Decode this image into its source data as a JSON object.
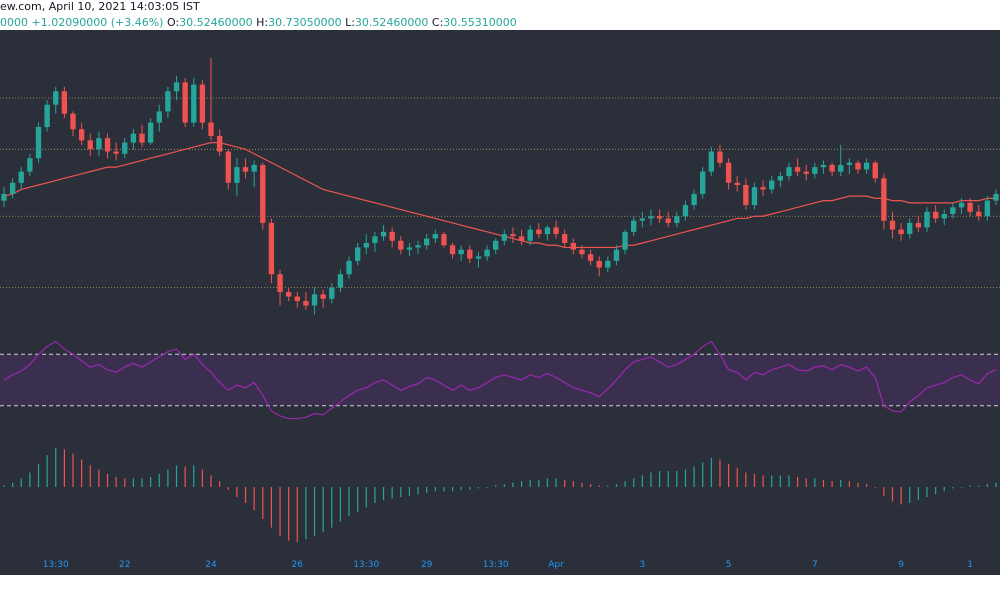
{
  "header": {
    "source": "ew.com, April 10, 2021 14:03:05 IST",
    "change_prefix": "0000",
    "change": "+1.02090000 (+3.46%)",
    "open_label": "O:",
    "open": "30.52460000",
    "high_label": "H:",
    "high": "30.73050000",
    "low_label": "L:",
    "low": "30.52460000",
    "close_label": "C:",
    "close": "30.55310000"
  },
  "colors": {
    "background": "#2b2f3a",
    "up": "#26a69a",
    "down": "#ef5350",
    "ma": "#ef5350",
    "rsi": "#9c27b0",
    "rsi_band": "#3a2f4f",
    "level_line": "#b5a05a",
    "macd_up": "#26a69a",
    "macd_down": "#ef5350",
    "axis_text": "#2196f3"
  },
  "chart_data": [
    {
      "type": "candlestick",
      "ohlc": [
        [
          27.3,
          27.9,
          27.0,
          27.6
        ],
        [
          27.6,
          28.3,
          27.4,
          28.1
        ],
        [
          28.1,
          28.8,
          27.8,
          28.6
        ],
        [
          28.6,
          29.4,
          28.4,
          29.2
        ],
        [
          29.2,
          30.8,
          29.0,
          30.6
        ],
        [
          30.6,
          31.8,
          30.4,
          31.6
        ],
        [
          31.6,
          32.4,
          31.2,
          32.2
        ],
        [
          32.2,
          32.4,
          31.0,
          31.2
        ],
        [
          31.2,
          31.3,
          30.2,
          30.5
        ],
        [
          30.5,
          30.8,
          29.8,
          30.0
        ],
        [
          30.0,
          30.3,
          29.3,
          29.6
        ],
        [
          29.6,
          30.4,
          29.3,
          30.1
        ],
        [
          30.1,
          30.3,
          29.2,
          29.5
        ],
        [
          29.5,
          29.9,
          29.1,
          29.4
        ],
        [
          29.4,
          30.1,
          29.2,
          29.9
        ],
        [
          29.9,
          30.5,
          29.6,
          30.3
        ],
        [
          30.3,
          30.7,
          29.7,
          29.9
        ],
        [
          29.9,
          31.0,
          29.8,
          30.8
        ],
        [
          30.8,
          31.6,
          30.4,
          31.3
        ],
        [
          31.3,
          32.4,
          31.0,
          32.2
        ],
        [
          32.2,
          32.9,
          31.8,
          32.6
        ],
        [
          32.6,
          32.8,
          30.6,
          30.8
        ],
        [
          30.8,
          32.8,
          30.6,
          32.5
        ],
        [
          32.5,
          32.7,
          30.5,
          30.8
        ],
        [
          30.8,
          33.7,
          30.0,
          30.2
        ],
        [
          30.2,
          30.5,
          29.3,
          29.5
        ],
        [
          29.5,
          29.6,
          27.8,
          28.1
        ],
        [
          28.1,
          29.2,
          27.5,
          28.8
        ],
        [
          28.8,
          29.2,
          28.3,
          28.6
        ],
        [
          28.6,
          29.1,
          27.9,
          28.9
        ],
        [
          28.9,
          29.0,
          26.0,
          26.3
        ],
        [
          26.3,
          26.5,
          23.6,
          24.0
        ],
        [
          24.0,
          24.2,
          22.6,
          23.2
        ],
        [
          23.2,
          23.4,
          22.8,
          23.0
        ],
        [
          23.0,
          23.2,
          22.5,
          22.8
        ],
        [
          22.8,
          23.2,
          22.4,
          22.6
        ],
        [
          22.6,
          23.4,
          22.2,
          23.1
        ],
        [
          23.1,
          23.3,
          22.5,
          22.9
        ],
        [
          22.9,
          23.6,
          22.7,
          23.4
        ],
        [
          23.4,
          24.2,
          23.2,
          24.0
        ],
        [
          24.0,
          24.8,
          23.8,
          24.6
        ],
        [
          24.6,
          25.4,
          24.4,
          25.2
        ],
        [
          25.2,
          25.8,
          24.9,
          25.4
        ],
        [
          25.4,
          25.9,
          25.0,
          25.7
        ],
        [
          25.7,
          26.2,
          25.5,
          25.9
        ],
        [
          25.9,
          26.1,
          25.2,
          25.5
        ],
        [
          25.5,
          25.7,
          24.9,
          25.1
        ],
        [
          25.1,
          25.4,
          24.8,
          25.2
        ],
        [
          25.2,
          25.5,
          24.9,
          25.3
        ],
        [
          25.3,
          25.8,
          25.1,
          25.6
        ],
        [
          25.6,
          26.0,
          25.4,
          25.8
        ],
        [
          25.8,
          25.9,
          25.2,
          25.3
        ],
        [
          25.3,
          25.4,
          24.7,
          24.9
        ],
        [
          24.9,
          25.3,
          24.6,
          25.1
        ],
        [
          25.1,
          25.3,
          24.5,
          24.7
        ],
        [
          24.7,
          25.0,
          24.3,
          24.8
        ],
        [
          24.8,
          25.3,
          24.6,
          25.1
        ],
        [
          25.1,
          25.6,
          24.9,
          25.5
        ],
        [
          25.5,
          26.0,
          25.3,
          25.8
        ],
        [
          25.8,
          26.1,
          25.4,
          25.7
        ],
        [
          25.7,
          26.0,
          25.3,
          25.5
        ],
        [
          25.5,
          26.2,
          25.3,
          26.0
        ],
        [
          26.0,
          26.3,
          25.6,
          25.8
        ],
        [
          25.8,
          26.2,
          25.5,
          26.1
        ],
        [
          26.1,
          26.4,
          25.6,
          25.8
        ],
        [
          25.8,
          26.0,
          25.2,
          25.4
        ],
        [
          25.4,
          25.6,
          24.9,
          25.1
        ],
        [
          25.1,
          25.3,
          24.7,
          24.9
        ],
        [
          24.9,
          25.1,
          24.4,
          24.6
        ],
        [
          24.6,
          24.8,
          23.9,
          24.3
        ],
        [
          24.3,
          24.8,
          24.1,
          24.6
        ],
        [
          24.6,
          25.3,
          24.4,
          25.1
        ],
        [
          25.1,
          26.0,
          24.9,
          25.9
        ],
        [
          25.9,
          26.6,
          25.7,
          26.4
        ],
        [
          26.4,
          26.8,
          26.1,
          26.5
        ],
        [
          26.5,
          26.9,
          26.2,
          26.6
        ],
        [
          26.6,
          26.9,
          26.3,
          26.5
        ],
        [
          26.5,
          26.8,
          26.1,
          26.3
        ],
        [
          26.3,
          26.8,
          26.1,
          26.6
        ],
        [
          26.6,
          27.3,
          26.4,
          27.1
        ],
        [
          27.1,
          27.8,
          26.9,
          27.6
        ],
        [
          27.6,
          28.8,
          27.4,
          28.6
        ],
        [
          28.6,
          29.7,
          28.4,
          29.5
        ],
        [
          29.5,
          29.8,
          28.8,
          29.0
        ],
        [
          29.0,
          29.2,
          27.8,
          28.1
        ],
        [
          28.1,
          28.4,
          27.7,
          28.0
        ],
        [
          28.0,
          28.3,
          26.9,
          27.1
        ],
        [
          27.1,
          28.1,
          26.9,
          27.9
        ],
        [
          27.9,
          28.2,
          27.5,
          27.8
        ],
        [
          27.8,
          28.4,
          27.6,
          28.2
        ],
        [
          28.2,
          28.6,
          27.9,
          28.4
        ],
        [
          28.4,
          29.0,
          28.2,
          28.8
        ],
        [
          28.8,
          29.2,
          28.4,
          28.6
        ],
        [
          28.6,
          28.9,
          28.2,
          28.5
        ],
        [
          28.5,
          29.0,
          28.3,
          28.8
        ],
        [
          28.8,
          29.1,
          28.5,
          28.9
        ],
        [
          28.9,
          29.0,
          28.4,
          28.6
        ],
        [
          28.6,
          29.8,
          28.4,
          28.9
        ],
        [
          28.9,
          29.2,
          28.5,
          29.0
        ],
        [
          29.0,
          29.1,
          28.5,
          28.7
        ],
        [
          28.7,
          29.2,
          28.5,
          29.0
        ],
        [
          29.0,
          29.1,
          28.1,
          28.3
        ],
        [
          28.3,
          28.5,
          26.0,
          26.4
        ],
        [
          26.4,
          26.8,
          25.6,
          26.0
        ],
        [
          26.0,
          26.3,
          25.5,
          25.8
        ],
        [
          25.8,
          26.5,
          25.6,
          26.3
        ],
        [
          26.3,
          26.6,
          25.9,
          26.1
        ],
        [
          26.1,
          27.0,
          25.9,
          26.8
        ],
        [
          26.8,
          27.1,
          26.3,
          26.5
        ],
        [
          26.5,
          26.9,
          26.2,
          26.7
        ],
        [
          26.7,
          27.2,
          26.5,
          27.0
        ],
        [
          27.0,
          27.4,
          26.7,
          27.2
        ],
        [
          27.2,
          27.4,
          26.6,
          26.8
        ],
        [
          26.8,
          27.1,
          26.4,
          26.6
        ],
        [
          26.6,
          27.5,
          26.4,
          27.3
        ],
        [
          27.3,
          27.8,
          27.1,
          27.6
        ]
      ],
      "ma": [
        27.5,
        27.6,
        27.8,
        27.9,
        28.0,
        28.1,
        28.2,
        28.3,
        28.4,
        28.5,
        28.6,
        28.7,
        28.8,
        28.8,
        28.9,
        29.0,
        29.1,
        29.2,
        29.3,
        29.4,
        29.5,
        29.6,
        29.7,
        29.8,
        29.9,
        29.9,
        29.8,
        29.7,
        29.6,
        29.4,
        29.2,
        29.0,
        28.8,
        28.6,
        28.4,
        28.2,
        28.0,
        27.8,
        27.7,
        27.6,
        27.5,
        27.4,
        27.3,
        27.2,
        27.1,
        27.0,
        26.9,
        26.8,
        26.7,
        26.6,
        26.5,
        26.4,
        26.3,
        26.2,
        26.1,
        26.0,
        25.9,
        25.8,
        25.7,
        25.6,
        25.5,
        25.4,
        25.4,
        25.3,
        25.3,
        25.2,
        25.2,
        25.2,
        25.2,
        25.2,
        25.2,
        25.2,
        25.3,
        25.3,
        25.4,
        25.5,
        25.6,
        25.7,
        25.8,
        25.9,
        26.0,
        26.1,
        26.2,
        26.3,
        26.4,
        26.5,
        26.5,
        26.6,
        26.6,
        26.7,
        26.8,
        26.9,
        27.0,
        27.1,
        27.2,
        27.3,
        27.3,
        27.4,
        27.5,
        27.5,
        27.5,
        27.4,
        27.4,
        27.3,
        27.3,
        27.2,
        27.2,
        27.2,
        27.2,
        27.2,
        27.2,
        27.3,
        27.3,
        27.3,
        27.4,
        27.4
      ],
      "levels": [
        31.9,
        29.6,
        26.6,
        23.4
      ],
      "ylim": [
        21.5,
        34.5
      ]
    },
    {
      "type": "line",
      "name_hidden": true,
      "rsi": [
        50,
        54,
        57,
        62,
        70,
        76,
        80,
        74,
        70,
        65,
        60,
        62,
        58,
        56,
        60,
        63,
        60,
        64,
        68,
        72,
        74,
        66,
        70,
        62,
        56,
        48,
        42,
        46,
        44,
        48,
        38,
        26,
        22,
        20,
        20,
        21,
        24,
        23,
        28,
        33,
        38,
        42,
        44,
        48,
        50,
        46,
        42,
        45,
        47,
        52,
        50,
        46,
        42,
        46,
        42,
        44,
        48,
        52,
        54,
        52,
        50,
        54,
        52,
        55,
        52,
        48,
        44,
        42,
        40,
        37,
        43,
        50,
        58,
        64,
        66,
        68,
        64,
        60,
        62,
        66,
        70,
        76,
        80,
        70,
        58,
        56,
        50,
        56,
        54,
        58,
        60,
        62,
        58,
        57,
        60,
        61,
        58,
        62,
        60,
        57,
        60,
        52,
        30,
        26,
        25,
        33,
        38,
        44,
        46,
        48,
        52,
        54,
        50,
        47,
        55,
        58
      ],
      "upper": 70,
      "lower": 30,
      "ylim": [
        15,
        85
      ]
    },
    {
      "type": "bar",
      "macd_hist": [
        0.05,
        0.15,
        0.3,
        0.5,
        0.8,
        1.1,
        1.35,
        1.3,
        1.15,
        0.95,
        0.75,
        0.6,
        0.45,
        0.35,
        0.3,
        0.3,
        0.3,
        0.35,
        0.45,
        0.6,
        0.75,
        0.7,
        0.75,
        0.6,
        0.4,
        0.2,
        -0.1,
        -0.35,
        -0.55,
        -0.8,
        -1.1,
        -1.4,
        -1.7,
        -1.85,
        -1.9,
        -1.8,
        -1.7,
        -1.55,
        -1.4,
        -1.2,
        -1.0,
        -0.85,
        -0.7,
        -0.55,
        -0.45,
        -0.4,
        -0.35,
        -0.3,
        -0.25,
        -0.2,
        -0.15,
        -0.15,
        -0.15,
        -0.1,
        -0.1,
        -0.05,
        0.0,
        0.05,
        0.1,
        0.15,
        0.2,
        0.25,
        0.25,
        0.3,
        0.3,
        0.25,
        0.2,
        0.15,
        0.1,
        0.05,
        0.05,
        0.1,
        0.2,
        0.3,
        0.4,
        0.5,
        0.55,
        0.55,
        0.55,
        0.6,
        0.7,
        0.85,
        1.0,
        0.95,
        0.8,
        0.65,
        0.5,
        0.45,
        0.4,
        0.4,
        0.4,
        0.4,
        0.35,
        0.3,
        0.3,
        0.25,
        0.2,
        0.25,
        0.2,
        0.15,
        0.1,
        0.0,
        -0.3,
        -0.5,
        -0.6,
        -0.55,
        -0.45,
        -0.35,
        -0.25,
        -0.15,
        -0.05,
        0.0,
        0.05,
        0.05,
        0.1,
        0.15
      ],
      "ylim": [
        -2.0,
        2.0
      ]
    }
  ],
  "x_axis": {
    "ticks": [
      {
        "index": 6,
        "label": "13:30"
      },
      {
        "index": 14,
        "label": "22"
      },
      {
        "index": 24,
        "label": "24"
      },
      {
        "index": 34,
        "label": "26"
      },
      {
        "index": 42,
        "label": "13:30"
      },
      {
        "index": 49,
        "label": "29"
      },
      {
        "index": 57,
        "label": "13:30"
      },
      {
        "index": 64,
        "label": "Apr"
      },
      {
        "index": 74,
        "label": "3"
      },
      {
        "index": 84,
        "label": "5"
      },
      {
        "index": 94,
        "label": "7"
      },
      {
        "index": 104,
        "label": "9"
      },
      {
        "index": 112,
        "label": "1"
      }
    ]
  }
}
